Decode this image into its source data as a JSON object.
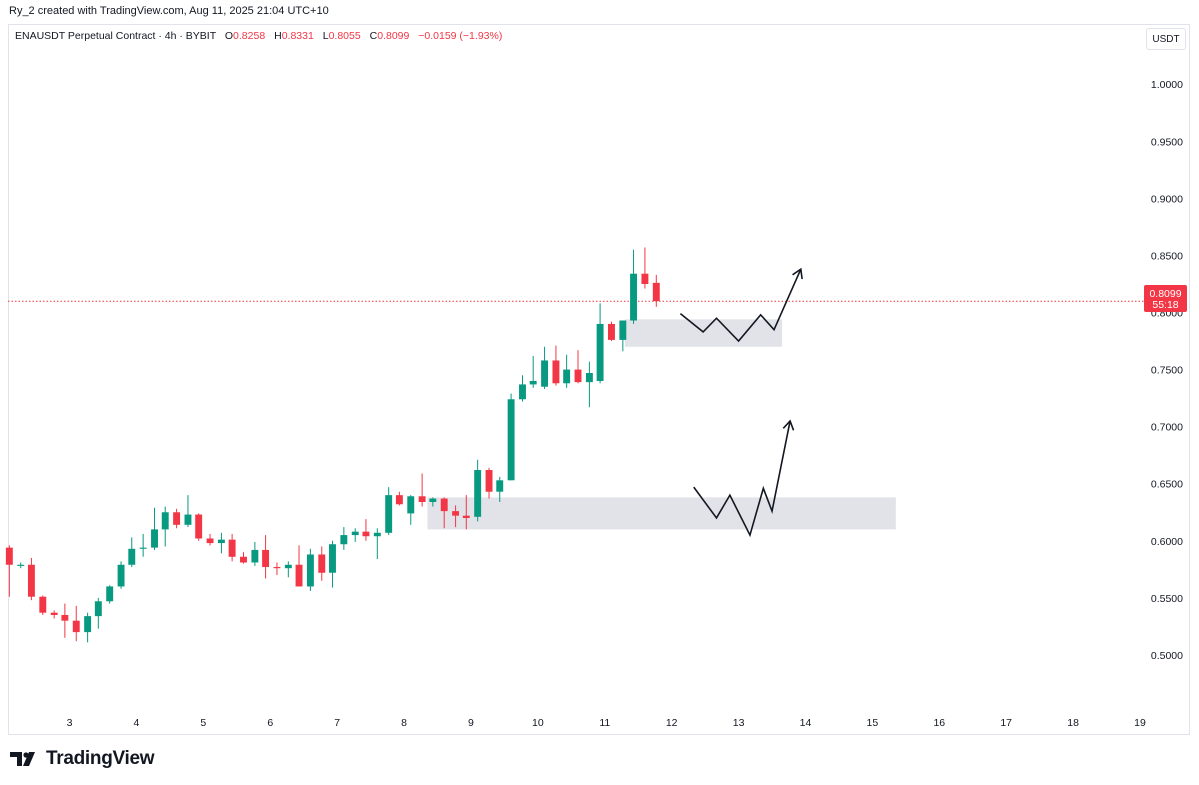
{
  "header": {
    "credit": "Ry_2 created with TradingView.com, Aug 11, 2025 21:04 UTC+10"
  },
  "legend": {
    "symbol": "ENAUSDT Perpetual Contract · 4h · BYBIT",
    "open_label": "O",
    "open": "0.8258",
    "high_label": "H",
    "high": "0.8331",
    "low_label": "L",
    "low": "0.8055",
    "close_label": "C",
    "close": "0.8099",
    "change": "−0.0159 (−1.93%)"
  },
  "currency_button": "USDT",
  "price_tag": {
    "price": "0.8099",
    "countdown": "55:18"
  },
  "brand": {
    "name": "TradingView"
  },
  "colors": {
    "up": "#089981",
    "down": "#f23645",
    "zone": "#d1d4dc",
    "price_line": "#f23645"
  },
  "chart_data": {
    "type": "candlestick",
    "y_ticks": [
      "1.0000",
      "0.9500",
      "0.9000",
      "0.8500",
      "0.8000",
      "0.7500",
      "0.7000",
      "0.6500",
      "0.6000",
      "0.5500",
      "0.5000"
    ],
    "x_ticks": [
      {
        "label": "3",
        "x": 3
      },
      {
        "label": "4",
        "x": 4
      },
      {
        "label": "5",
        "x": 5
      },
      {
        "label": "6",
        "x": 6
      },
      {
        "label": "7",
        "x": 7
      },
      {
        "label": "8",
        "x": 8
      },
      {
        "label": "9",
        "x": 9
      },
      {
        "label": "10",
        "x": 10
      },
      {
        "label": "11",
        "x": 11
      },
      {
        "label": "12",
        "x": 12
      },
      {
        "label": "13",
        "x": 13
      },
      {
        "label": "14",
        "x": 14
      },
      {
        "label": "15",
        "x": 15
      },
      {
        "label": "16",
        "x": 16
      },
      {
        "label": "17",
        "x": 17
      },
      {
        "label": "18",
        "x": 18
      },
      {
        "label": "19",
        "x": 19
      }
    ],
    "ylim": [
      0.45,
      1.03
    ],
    "xlim": [
      2.08,
      19.0
    ],
    "candle_step_days": 0.1667,
    "candles": [
      {
        "x": 2.1,
        "o": 0.594,
        "h": 0.596,
        "l": 0.551,
        "c": 0.579
      },
      {
        "x": 2.27,
        "o": 0.578,
        "h": 0.581,
        "l": 0.576,
        "c": 0.579
      },
      {
        "x": 2.43,
        "o": 0.579,
        "h": 0.585,
        "l": 0.548,
        "c": 0.551
      },
      {
        "x": 2.6,
        "o": 0.551,
        "h": 0.552,
        "l": 0.535,
        "c": 0.537
      },
      {
        "x": 2.77,
        "o": 0.537,
        "h": 0.539,
        "l": 0.532,
        "c": 0.535
      },
      {
        "x": 2.93,
        "o": 0.535,
        "h": 0.545,
        "l": 0.515,
        "c": 0.53
      },
      {
        "x": 3.1,
        "o": 0.53,
        "h": 0.543,
        "l": 0.512,
        "c": 0.52
      },
      {
        "x": 3.27,
        "o": 0.52,
        "h": 0.537,
        "l": 0.511,
        "c": 0.534
      },
      {
        "x": 3.43,
        "o": 0.534,
        "h": 0.55,
        "l": 0.523,
        "c": 0.547
      },
      {
        "x": 3.6,
        "o": 0.547,
        "h": 0.561,
        "l": 0.545,
        "c": 0.56
      },
      {
        "x": 3.77,
        "o": 0.56,
        "h": 0.582,
        "l": 0.558,
        "c": 0.579
      },
      {
        "x": 3.93,
        "o": 0.579,
        "h": 0.603,
        "l": 0.577,
        "c": 0.593
      },
      {
        "x": 4.1,
        "o": 0.593,
        "h": 0.606,
        "l": 0.586,
        "c": 0.594
      },
      {
        "x": 4.27,
        "o": 0.594,
        "h": 0.629,
        "l": 0.592,
        "c": 0.61
      },
      {
        "x": 4.43,
        "o": 0.61,
        "h": 0.63,
        "l": 0.595,
        "c": 0.625
      },
      {
        "x": 4.6,
        "o": 0.625,
        "h": 0.628,
        "l": 0.611,
        "c": 0.614
      },
      {
        "x": 4.77,
        "o": 0.614,
        "h": 0.64,
        "l": 0.612,
        "c": 0.623
      },
      {
        "x": 4.93,
        "o": 0.623,
        "h": 0.624,
        "l": 0.6,
        "c": 0.602
      },
      {
        "x": 5.1,
        "o": 0.602,
        "h": 0.606,
        "l": 0.596,
        "c": 0.598
      },
      {
        "x": 5.27,
        "o": 0.598,
        "h": 0.607,
        "l": 0.589,
        "c": 0.601
      },
      {
        "x": 5.43,
        "o": 0.601,
        "h": 0.606,
        "l": 0.582,
        "c": 0.586
      },
      {
        "x": 5.6,
        "o": 0.586,
        "h": 0.59,
        "l": 0.58,
        "c": 0.581
      },
      {
        "x": 5.77,
        "o": 0.581,
        "h": 0.599,
        "l": 0.578,
        "c": 0.592
      },
      {
        "x": 5.93,
        "o": 0.592,
        "h": 0.605,
        "l": 0.567,
        "c": 0.577
      },
      {
        "x": 6.1,
        "o": 0.577,
        "h": 0.581,
        "l": 0.57,
        "c": 0.576
      },
      {
        "x": 6.27,
        "o": 0.576,
        "h": 0.582,
        "l": 0.568,
        "c": 0.579
      },
      {
        "x": 6.43,
        "o": 0.579,
        "h": 0.596,
        "l": 0.56,
        "c": 0.56
      },
      {
        "x": 6.6,
        "o": 0.56,
        "h": 0.593,
        "l": 0.556,
        "c": 0.588
      },
      {
        "x": 6.77,
        "o": 0.588,
        "h": 0.595,
        "l": 0.565,
        "c": 0.572
      },
      {
        "x": 6.93,
        "o": 0.572,
        "h": 0.6,
        "l": 0.559,
        "c": 0.597
      },
      {
        "x": 7.1,
        "o": 0.597,
        "h": 0.612,
        "l": 0.592,
        "c": 0.605
      },
      {
        "x": 7.27,
        "o": 0.605,
        "h": 0.611,
        "l": 0.599,
        "c": 0.608
      },
      {
        "x": 7.43,
        "o": 0.608,
        "h": 0.619,
        "l": 0.6,
        "c": 0.604
      },
      {
        "x": 7.6,
        "o": 0.604,
        "h": 0.611,
        "l": 0.584,
        "c": 0.607
      },
      {
        "x": 7.77,
        "o": 0.607,
        "h": 0.647,
        "l": 0.605,
        "c": 0.64
      },
      {
        "x": 7.93,
        "o": 0.64,
        "h": 0.643,
        "l": 0.631,
        "c": 0.632
      },
      {
        "x": 8.1,
        "o": 0.624,
        "h": 0.64,
        "l": 0.614,
        "c": 0.639
      },
      {
        "x": 8.27,
        "o": 0.639,
        "h": 0.659,
        "l": 0.63,
        "c": 0.634
      },
      {
        "x": 8.43,
        "o": 0.634,
        "h": 0.638,
        "l": 0.63,
        "c": 0.637
      },
      {
        "x": 8.6,
        "o": 0.637,
        "h": 0.638,
        "l": 0.611,
        "c": 0.626
      },
      {
        "x": 8.77,
        "o": 0.626,
        "h": 0.631,
        "l": 0.612,
        "c": 0.622
      },
      {
        "x": 8.93,
        "o": 0.622,
        "h": 0.64,
        "l": 0.61,
        "c": 0.62
      },
      {
        "x": 9.1,
        "o": 0.621,
        "h": 0.671,
        "l": 0.617,
        "c": 0.662
      },
      {
        "x": 9.27,
        "o": 0.662,
        "h": 0.664,
        "l": 0.637,
        "c": 0.643
      },
      {
        "x": 9.43,
        "o": 0.643,
        "h": 0.656,
        "l": 0.634,
        "c": 0.653
      },
      {
        "x": 9.6,
        "o": 0.653,
        "h": 0.729,
        "l": 0.653,
        "c": 0.724
      },
      {
        "x": 9.77,
        "o": 0.724,
        "h": 0.745,
        "l": 0.722,
        "c": 0.737
      },
      {
        "x": 9.93,
        "o": 0.737,
        "h": 0.762,
        "l": 0.734,
        "c": 0.74
      },
      {
        "x": 10.1,
        "o": 0.735,
        "h": 0.77,
        "l": 0.733,
        "c": 0.758
      },
      {
        "x": 10.27,
        "o": 0.758,
        "h": 0.771,
        "l": 0.736,
        "c": 0.738
      },
      {
        "x": 10.43,
        "o": 0.738,
        "h": 0.763,
        "l": 0.734,
        "c": 0.75
      },
      {
        "x": 10.6,
        "o": 0.75,
        "h": 0.767,
        "l": 0.738,
        "c": 0.739
      },
      {
        "x": 10.77,
        "o": 0.739,
        "h": 0.757,
        "l": 0.717,
        "c": 0.747
      },
      {
        "x": 10.93,
        "o": 0.74,
        "h": 0.808,
        "l": 0.738,
        "c": 0.79
      },
      {
        "x": 11.1,
        "o": 0.79,
        "h": 0.792,
        "l": 0.775,
        "c": 0.776
      },
      {
        "x": 11.27,
        "o": 0.776,
        "h": 0.793,
        "l": 0.766,
        "c": 0.793
      },
      {
        "x": 11.43,
        "o": 0.793,
        "h": 0.855,
        "l": 0.79,
        "c": 0.834
      },
      {
        "x": 11.6,
        "o": 0.834,
        "h": 0.857,
        "l": 0.821,
        "c": 0.825
      },
      {
        "x": 11.77,
        "o": 0.826,
        "h": 0.833,
        "l": 0.805,
        "c": 0.81
      }
    ],
    "last_price": 0.8099,
    "zones": [
      {
        "x0": 11.3,
        "x1": 13.65,
        "y0": 0.794,
        "y1": 0.77
      },
      {
        "x0": 8.35,
        "x1": 15.35,
        "y0": 0.638,
        "y1": 0.61
      }
    ],
    "paths": [
      {
        "points": [
          [
            12.13,
            0.799
          ],
          [
            12.47,
            0.783
          ],
          [
            12.67,
            0.795
          ],
          [
            13.0,
            0.775
          ],
          [
            13.33,
            0.798
          ],
          [
            13.53,
            0.785
          ],
          [
            13.93,
            0.838
          ]
        ]
      },
      {
        "points": [
          [
            12.33,
            0.647
          ],
          [
            12.67,
            0.62
          ],
          [
            12.87,
            0.64
          ],
          [
            13.17,
            0.605
          ],
          [
            13.37,
            0.646
          ],
          [
            13.5,
            0.626
          ],
          [
            13.77,
            0.705
          ]
        ]
      }
    ]
  }
}
